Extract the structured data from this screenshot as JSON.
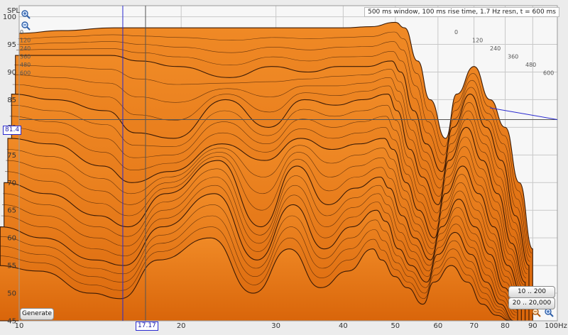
{
  "chart_data": {
    "type": "area",
    "title": "",
    "settings_text": "500 ms window, 100 ms rise time,  1.7 Hz resn, t = 600 ms",
    "ylabel": "SPL",
    "x_unit_label": "100Hz",
    "xlim": [
      10,
      100
    ],
    "ylim": [
      45,
      102
    ],
    "x_scale": "log",
    "x_ticks": [
      "10",
      "20",
      "30",
      "40",
      "50",
      "60",
      "70",
      "80",
      "90"
    ],
    "x_tick_values": [
      10,
      20,
      30,
      40,
      50,
      60,
      70,
      80,
      90
    ],
    "y_ticks": [
      "100",
      "95",
      "90",
      "85",
      "80",
      "75",
      "70",
      "65",
      "60",
      "55",
      "50",
      "45"
    ],
    "y_tick_values": [
      100,
      95,
      90,
      85,
      80,
      75,
      70,
      65,
      60,
      55,
      50,
      45
    ],
    "time_slice_labels": [
      "0",
      "120",
      "240",
      "360",
      "480",
      "600"
    ],
    "time_slice_ms": [
      0,
      120,
      240,
      360,
      480,
      600
    ],
    "cursor": {
      "x_label": "17.17",
      "y_label": "81.4",
      "x": 17.17,
      "y": 81.4
    },
    "grid": true,
    "series": [
      {
        "freq": [
          10,
          12,
          15,
          17,
          20,
          25,
          30,
          35,
          40,
          45,
          50,
          52,
          55,
          58,
          62,
          65,
          70,
          75,
          80,
          85,
          90
        ],
        "spl": [
          97,
          97.5,
          98,
          98,
          98,
          98,
          98,
          98,
          98,
          98.2,
          99,
          98,
          92,
          85,
          78,
          86,
          91,
          85,
          80,
          70,
          58
        ]
      },
      {
        "freq": [
          10,
          12,
          15,
          17,
          20,
          25,
          30,
          35,
          40,
          45,
          50,
          52,
          55,
          58,
          62,
          65,
          70,
          75,
          80,
          85,
          90
        ],
        "spl": [
          93,
          93,
          93,
          92,
          91,
          89,
          91,
          90,
          91,
          91,
          92,
          90,
          83,
          77,
          72,
          80,
          86,
          80,
          74,
          64,
          55
        ]
      },
      {
        "freq": [
          10,
          12,
          15,
          17,
          20,
          25,
          30,
          35,
          40,
          45,
          50,
          52,
          55,
          58,
          62,
          65,
          70,
          75,
          80,
          85,
          90
        ],
        "spl": [
          86,
          85,
          83,
          79,
          78,
          85,
          80,
          85,
          84,
          85,
          86,
          83,
          76,
          71,
          66,
          74,
          80,
          74,
          68,
          59,
          52
        ]
      },
      {
        "freq": [
          10,
          12,
          15,
          17,
          20,
          25,
          30,
          35,
          40,
          45,
          50,
          52,
          55,
          58,
          62,
          65,
          70,
          75,
          80,
          85,
          90
        ],
        "spl": [
          78,
          77,
          73,
          70,
          72,
          77,
          74,
          78,
          76,
          77,
          78,
          76,
          70,
          65,
          60,
          68,
          73,
          68,
          62,
          55,
          50
        ]
      },
      {
        "freq": [
          10,
          12,
          15,
          17,
          20,
          25,
          30,
          35,
          40,
          45,
          50,
          52,
          55,
          58,
          62,
          65,
          70,
          75,
          80,
          85,
          90
        ],
        "spl": [
          70,
          68,
          64,
          62,
          68,
          74,
          62,
          73,
          66,
          69,
          71,
          69,
          64,
          60,
          56,
          62,
          67,
          62,
          57,
          51,
          47
        ]
      },
      {
        "freq": [
          10,
          12,
          15,
          17,
          20,
          25,
          30,
          35,
          40,
          45,
          50,
          52,
          55,
          58,
          62,
          65,
          70,
          75,
          80,
          85,
          90
        ],
        "spl": [
          62,
          60,
          56,
          55,
          62,
          68,
          56,
          66,
          58,
          62,
          65,
          63,
          58,
          55,
          52,
          57,
          61,
          57,
          52,
          48,
          45
        ]
      },
      {
        "freq": [
          10,
          12,
          15,
          17,
          20,
          25,
          30,
          35,
          40,
          45,
          50,
          52,
          55,
          58,
          62,
          65,
          70,
          75,
          80,
          85,
          90
        ],
        "spl": [
          55,
          54,
          50,
          49,
          56,
          60,
          50,
          58,
          51,
          54,
          58,
          56,
          53,
          51,
          48,
          52,
          55,
          52,
          48,
          46,
          45
        ]
      }
    ]
  },
  "buttons": {
    "generate": "Generate",
    "range_10_200": "10 .. 200",
    "range_20_20000": "20 .. 20,000"
  },
  "colors": {
    "fill": "#e0700e",
    "fill_light": "#f0942e",
    "line": "#3a1a06",
    "grid": "#c8c8c8",
    "cursor": "#2a2ad0",
    "background": "#f4f4f4"
  }
}
